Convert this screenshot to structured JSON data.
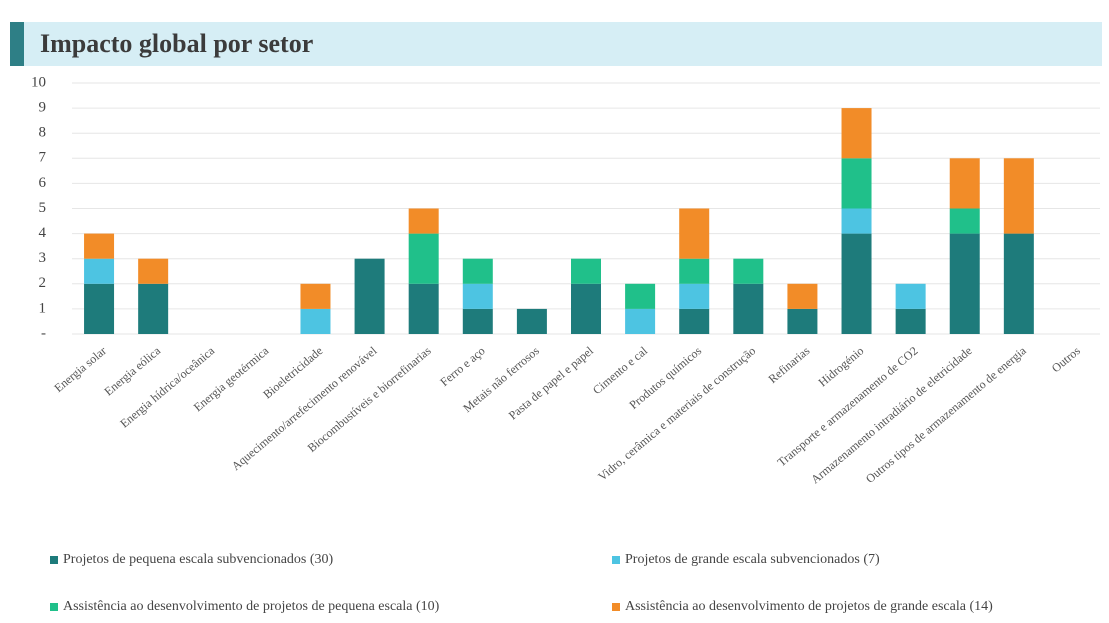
{
  "chart_data": {
    "type": "stacked_bar",
    "title": "Impacto global por setor",
    "categories": [
      "Energia solar",
      "Energia eólica",
      "Energia hídrica/oceânica",
      "Energia geotérmica",
      "Bioeletricidade",
      "Aquecimento/arrefecimento renovável",
      "Biocombustíveis e biorrefinarias",
      "Ferro e aço",
      "Metais não ferrosos",
      "Pasta de papel e papel",
      "Cimento e cal",
      "Produtos químicos",
      "Vidro, cerâmica e materiais de construção",
      "Refinarias",
      "Hidrogénio",
      "Transporte e armazenamento de CO2",
      "Armazenamento intradiário de eletricidade",
      "Outros tipos de armazenamento de energia",
      "Outros"
    ],
    "series": [
      {
        "name": "Projetos de pequena escala subvencionados (30)",
        "color": "#1e7b7b",
        "values": [
          2,
          2,
          0,
          0,
          0,
          3,
          2,
          1,
          1,
          2,
          0,
          1,
          2,
          1,
          4,
          1,
          4,
          4,
          0
        ]
      },
      {
        "name": "Projetos de grande escala subvencionados (7)",
        "color": "#4dc4e2",
        "values": [
          1,
          0,
          0,
          0,
          1,
          0,
          0,
          1,
          0,
          0,
          1,
          1,
          0,
          0,
          1,
          1,
          0,
          0,
          0
        ]
      },
      {
        "name": "Assistência ao desenvolvimento de projetos de pequena escala (10)",
        "color": "#20c08a",
        "values": [
          0,
          0,
          0,
          0,
          0,
          0,
          2,
          1,
          0,
          1,
          1,
          1,
          1,
          0,
          2,
          0,
          1,
          0,
          0
        ]
      },
      {
        "name": "Assistência ao desenvolvimento de projetos de grande escala (14)",
        "color": "#f28c28",
        "values": [
          1,
          1,
          0,
          0,
          1,
          0,
          1,
          0,
          0,
          0,
          0,
          2,
          0,
          1,
          2,
          0,
          2,
          3,
          0
        ]
      }
    ],
    "ylim": [
      0,
      10
    ],
    "yticks": [
      {
        "value": 0,
        "label": "-"
      },
      1,
      2,
      3,
      4,
      5,
      6,
      7,
      8,
      9,
      10
    ],
    "grid": true
  }
}
